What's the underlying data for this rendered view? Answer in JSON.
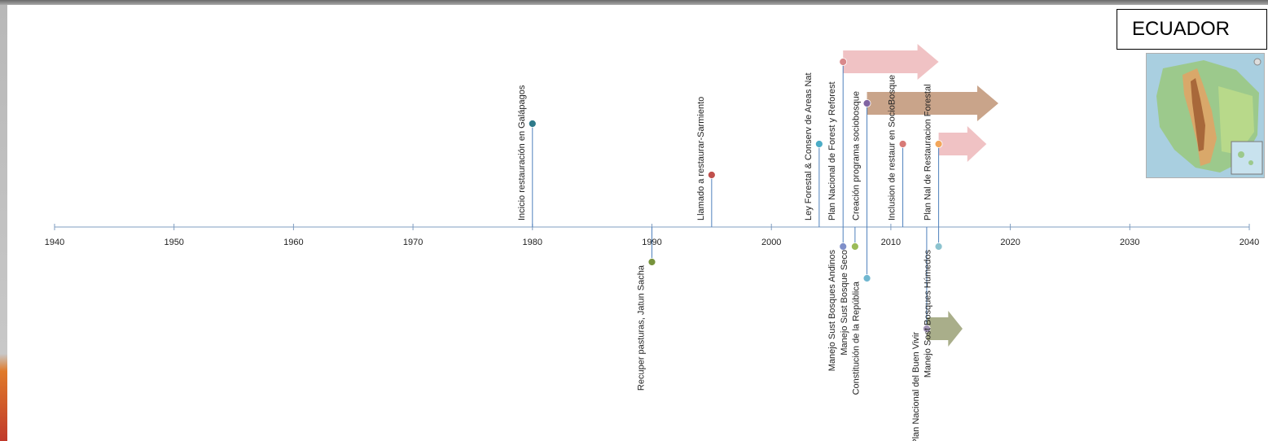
{
  "country": "ECUADOR",
  "map_icon": "ecuador-map-thumbnail",
  "chart_data": {
    "type": "timeline",
    "title": "",
    "xlim": [
      1940,
      2040
    ],
    "ticks": [
      1940,
      1950,
      1960,
      1970,
      1980,
      1990,
      2000,
      2010,
      2020,
      2030,
      2040
    ],
    "tick_labels": [
      "1940",
      "1950",
      "1960",
      "1970",
      "1980",
      "1990",
      "2000",
      "2010",
      "2020",
      "2030",
      "2040"
    ],
    "events": [
      {
        "label": "Incicio restauración en Galápagos",
        "year": 1980,
        "side": "above",
        "level": 4,
        "color": "#2e7a8a"
      },
      {
        "label": "Llamado a restaurar-Sarmiento",
        "year": 1995,
        "side": "above",
        "level": 2,
        "color": "#c0504d"
      },
      {
        "label": "Ley Forestal & Conserv de Areas Nat",
        "year": 2004,
        "side": "above",
        "level": 3,
        "color": "#4bacc6"
      },
      {
        "label": "Plan Nacional de Forest y Reforest",
        "year": 2006,
        "side": "above",
        "level": 6,
        "color": "#d9898b",
        "arrow_to": 2014,
        "arrow_color": "#f0c2c4"
      },
      {
        "label": "Creación programa sociobosque",
        "year": 2008,
        "side": "above",
        "level": 5,
        "color": "#8064a2",
        "arrow_to": 2019,
        "arrow_color": "#c9a48a"
      },
      {
        "label": "Inclusion de restaur en SocioBosque",
        "year": 2011,
        "side": "above",
        "level": 3,
        "color": "#d77a77"
      },
      {
        "label": "Plan Nal de Restauracion Forestal",
        "year": 2014,
        "side": "above",
        "level": 3,
        "color": "#f2a65a",
        "arrow_to": 2018,
        "arrow_color": "#f0c2c4"
      },
      {
        "label": "Recuper pasturas, Jatun Sacha",
        "year": 1990,
        "side": "below",
        "level": 1,
        "color": "#77933c"
      },
      {
        "label": "Manejo Sust Bosques Andinos",
        "year": 2006,
        "side": "below",
        "level": 0,
        "color": "#7f8fc9"
      },
      {
        "label": "Manejo Sust Bosque Seco",
        "year": 2007,
        "side": "below",
        "level": 0,
        "color": "#9bbb59"
      },
      {
        "label": "Constitución de la República",
        "year": 2008,
        "side": "below",
        "level": 2,
        "color": "#70b7d0"
      },
      {
        "label": "Plan Nacional del Buen Vivir",
        "year": 2013,
        "side": "below",
        "level": 4,
        "color": "#a495b8",
        "arrow_to": 2016,
        "arrow_color": "#a9ae8a"
      },
      {
        "label": "Manejo Sost Bosques Húmedos",
        "year": 2014,
        "side": "below",
        "level": 0,
        "color": "#8cc3cf"
      }
    ]
  }
}
